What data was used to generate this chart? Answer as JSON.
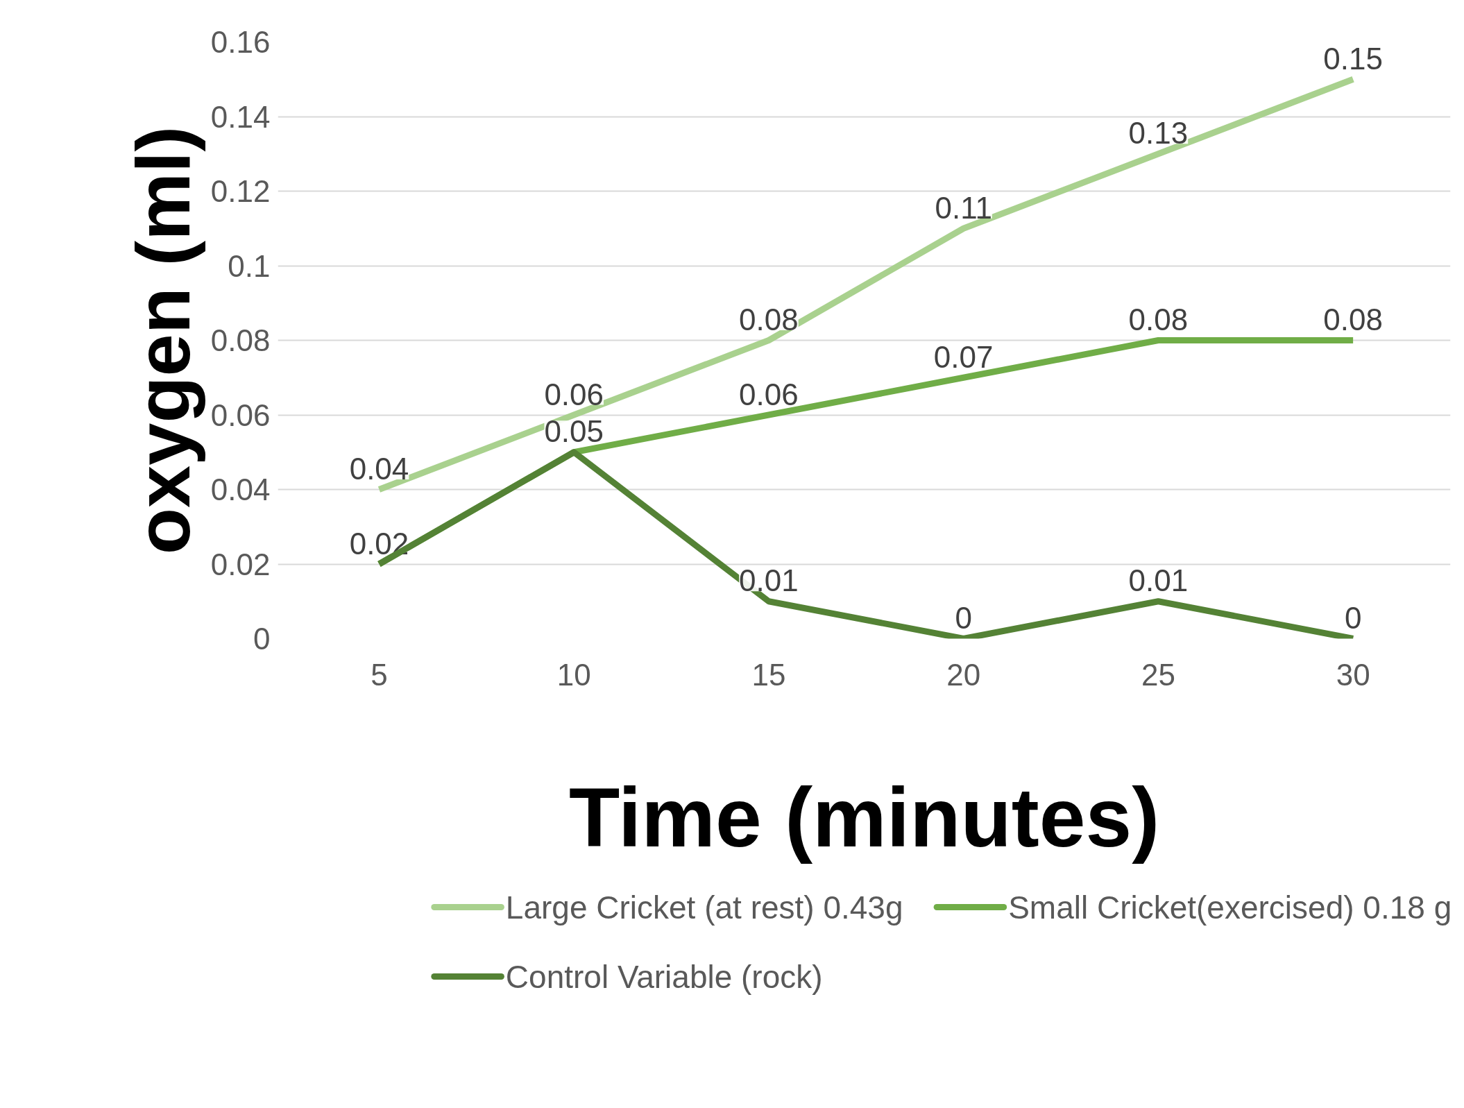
{
  "chart_data": {
    "type": "line",
    "xlabel": "Time (minutes)",
    "ylabel": "oxygen (ml)",
    "categories": [
      "5",
      "10",
      "15",
      "20",
      "25",
      "30"
    ],
    "series": [
      {
        "name": "Large Cricket (at rest) 0.43g",
        "color": "#a9d18e",
        "values": [
          0.04,
          0.06,
          0.08,
          0.11,
          0.13,
          0.15
        ]
      },
      {
        "name": "Small Cricket(exercised) 0.18 g",
        "color": "#70ad47",
        "values": [
          0.02,
          0.05,
          0.06,
          0.07,
          0.08,
          0.08
        ]
      },
      {
        "name": "Control Variable (rock)",
        "color": "#548235",
        "values": [
          0.02,
          0.05,
          0.01,
          0,
          0.01,
          0
        ],
        "value_labels": [
          null,
          null,
          "0.01",
          "0",
          "0.01",
          "0"
        ]
      }
    ],
    "ylim": [
      0,
      0.16
    ],
    "yticks": [
      0,
      0.02,
      0.04,
      0.06,
      0.08,
      0.1,
      0.12,
      0.14,
      0.16
    ],
    "grid": "y",
    "legend": "bottom",
    "data_labels": true,
    "line_style": "solid"
  }
}
